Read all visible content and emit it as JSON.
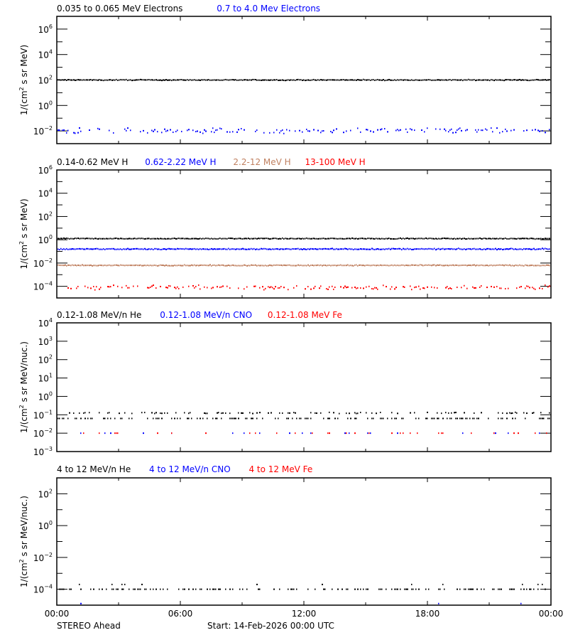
{
  "chart_data": [
    {
      "type": "scatter",
      "panel": 1,
      "title": "",
      "ylabel": "1/(cm^2 s sr MeV)",
      "yscale": "log",
      "ylim_exp": [
        -3,
        7
      ],
      "ytick_labels_exp": [
        6,
        4,
        2,
        0,
        -2
      ],
      "minor_tick_exp": [
        5,
        3,
        1,
        -1
      ],
      "legend": [
        {
          "name": "0.035 to 0.065 MeV Electrons",
          "color": "#000000"
        },
        {
          "name": "0.7 to 4.0 Mev Electrons",
          "color": "#0000ff"
        }
      ],
      "series": [
        {
          "name": "0.035 to 0.065 MeV Electrons",
          "color": "#000000",
          "level_exp": 2.0,
          "jitter": 0.05,
          "density": 1.0
        },
        {
          "name": "0.7 to 4.0 Mev Electrons",
          "color": "#0000ff",
          "level_exp": -2.0,
          "jitter": 0.3,
          "density": 0.45
        }
      ]
    },
    {
      "type": "scatter",
      "panel": 2,
      "ylabel": "1/(cm^2 s sr MeV)",
      "yscale": "log",
      "ylim_exp": [
        -5,
        6
      ],
      "ytick_labels_exp": [
        6,
        4,
        2,
        0,
        -2,
        -4
      ],
      "minor_tick_exp": [
        5,
        3,
        1,
        -1,
        -3
      ],
      "legend": [
        {
          "name": "0.14-0.62 MeV H",
          "color": "#000000"
        },
        {
          "name": "0.62-2.22 MeV H",
          "color": "#0000ff"
        },
        {
          "name": "2.2-12 MeV H",
          "color": "#c08060"
        },
        {
          "name": "13-100 MeV H",
          "color": "#ff0000"
        }
      ],
      "series": [
        {
          "name": "0.14-0.62 MeV H",
          "color": "#000000",
          "level_exp": 0.1,
          "jitter": 0.05,
          "density": 1.0
        },
        {
          "name": "0.62-2.22 MeV H",
          "color": "#0000ff",
          "level_exp": -0.8,
          "jitter": 0.07,
          "density": 1.0
        },
        {
          "name": "2.2-12 MeV H",
          "color": "#c08060",
          "level_exp": -2.2,
          "jitter": 0.06,
          "density": 1.0
        },
        {
          "name": "13-100 MeV H",
          "color": "#ff0000",
          "level_exp": -4.1,
          "jitter": 0.25,
          "density": 0.45
        }
      ]
    },
    {
      "type": "scatter",
      "panel": 3,
      "ylabel": "1/(cm^2 s sr MeV/nuc.)",
      "yscale": "log",
      "ylim_exp": [
        -3,
        4
      ],
      "ytick_labels_exp": [
        4,
        3,
        2,
        1,
        0,
        -1,
        -2,
        -3
      ],
      "minor_tick_exp": [],
      "legend": [
        {
          "name": "0.12-1.08 MeV/n He",
          "color": "#000000"
        },
        {
          "name": "0.12-1.08 MeV/n CNO",
          "color": "#0000ff"
        },
        {
          "name": "0.12-1.08 MeV Fe",
          "color": "#ff0000"
        }
      ],
      "series": [
        {
          "name": "0.12-1.08 MeV/n He",
          "color": "#000000",
          "level_exp": -1.2,
          "jitter": 0.0,
          "density": 0.35
        },
        {
          "name": "0.12-1.08 MeV/n He (upper)",
          "color": "#000000",
          "level_exp": -0.9,
          "jitter": 0.05,
          "density": 0.3
        },
        {
          "name": "0.12-1.08 MeV/n CNO",
          "color": "#0000ff",
          "level_exp": -2.0,
          "jitter": 0.0,
          "density": 0.06
        },
        {
          "name": "0.12-1.08 MeV Fe",
          "color": "#ff0000",
          "level_exp": -2.0,
          "jitter": 0.0,
          "density": 0.07
        }
      ]
    },
    {
      "type": "scatter",
      "panel": 4,
      "ylabel": "1/(cm^2 s sr MeV/nuc.)",
      "yscale": "log",
      "ylim_exp": [
        -5,
        3
      ],
      "ytick_labels_exp": [
        2,
        0,
        -2,
        -4
      ],
      "minor_tick_exp": [
        1,
        -1,
        -3
      ],
      "legend": [
        {
          "name": "4 to 12 MeV/n He",
          "color": "#000000"
        },
        {
          "name": "4 to 12 MeV/n CNO",
          "color": "#0000ff"
        },
        {
          "name": "4 to 12 MeV Fe",
          "color": "#ff0000"
        }
      ],
      "series": [
        {
          "name": "4 to 12 MeV/n He",
          "color": "#000000",
          "level_exp": -4.0,
          "jitter": 0.0,
          "density": 0.35
        },
        {
          "name": "4 to 12 MeV/n He (upper)",
          "color": "#000000",
          "level_exp": -3.7,
          "jitter": 0.0,
          "density": 0.04
        },
        {
          "name": "4 to 12 MeV/n CNO",
          "color": "#0000ff",
          "level_exp": -4.9,
          "jitter": 0.0,
          "density": 0.004
        }
      ]
    }
  ],
  "x_axis": {
    "tick_labels": [
      "00:00",
      "06:00",
      "12:00",
      "18:00",
      "00:00"
    ],
    "range_hours": [
      0,
      24
    ],
    "major_every_hours": 6,
    "minor_every_hours": 3
  },
  "footer": {
    "spacecraft": "STEREO Ahead",
    "start": "Start: 14-Feb-2026 00:00 UTC"
  }
}
